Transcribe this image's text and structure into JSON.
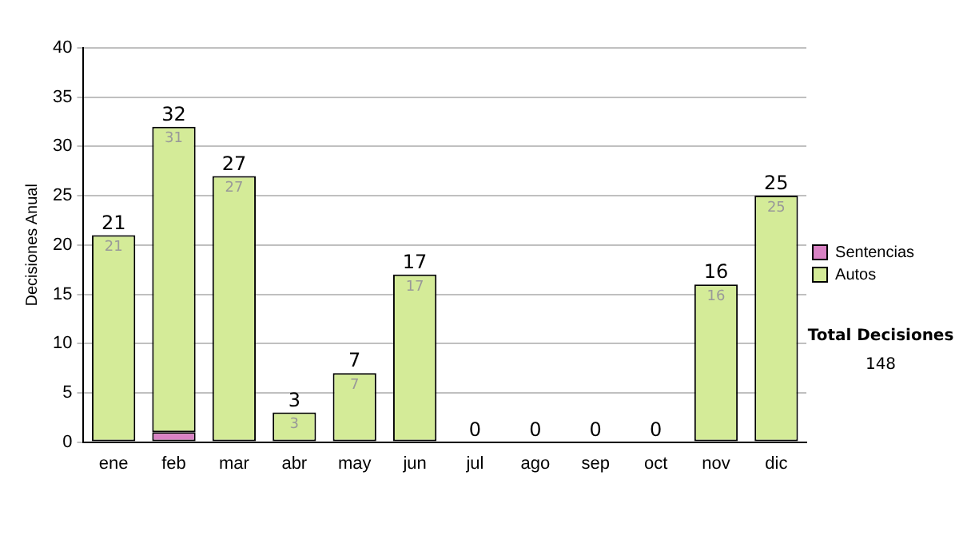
{
  "chart_data": {
    "type": "bar",
    "stacked": true,
    "ylabel": "Decisiones Anual",
    "categories": [
      "ene",
      "feb",
      "mar",
      "abr",
      "may",
      "jun",
      "jul",
      "ago",
      "sep",
      "oct",
      "nov",
      "dic"
    ],
    "series": [
      {
        "name": "Sentencias",
        "color": "#d982c4",
        "values": [
          0,
          1,
          0,
          0,
          0,
          0,
          0,
          0,
          0,
          0,
          0,
          0
        ]
      },
      {
        "name": "Autos",
        "color": "#d4eb98",
        "values": [
          21,
          31,
          27,
          3,
          7,
          17,
          0,
          0,
          0,
          0,
          16,
          25
        ],
        "value_labels": [
          "21",
          "31",
          "27",
          "3",
          "7",
          "17",
          null,
          null,
          null,
          null,
          "16",
          "25"
        ]
      }
    ],
    "totals": [
      "21",
      "32",
      "27",
      "3",
      "7",
      "17",
      "0",
      "0",
      "0",
      "0",
      "16",
      "25"
    ],
    "ylim": [
      0,
      40
    ],
    "yticks": [
      0,
      5,
      10,
      15,
      20,
      25,
      30,
      35,
      40
    ],
    "grid": "y",
    "legend": "right",
    "annotations": [
      "Total Decisiones",
      "148"
    ]
  }
}
